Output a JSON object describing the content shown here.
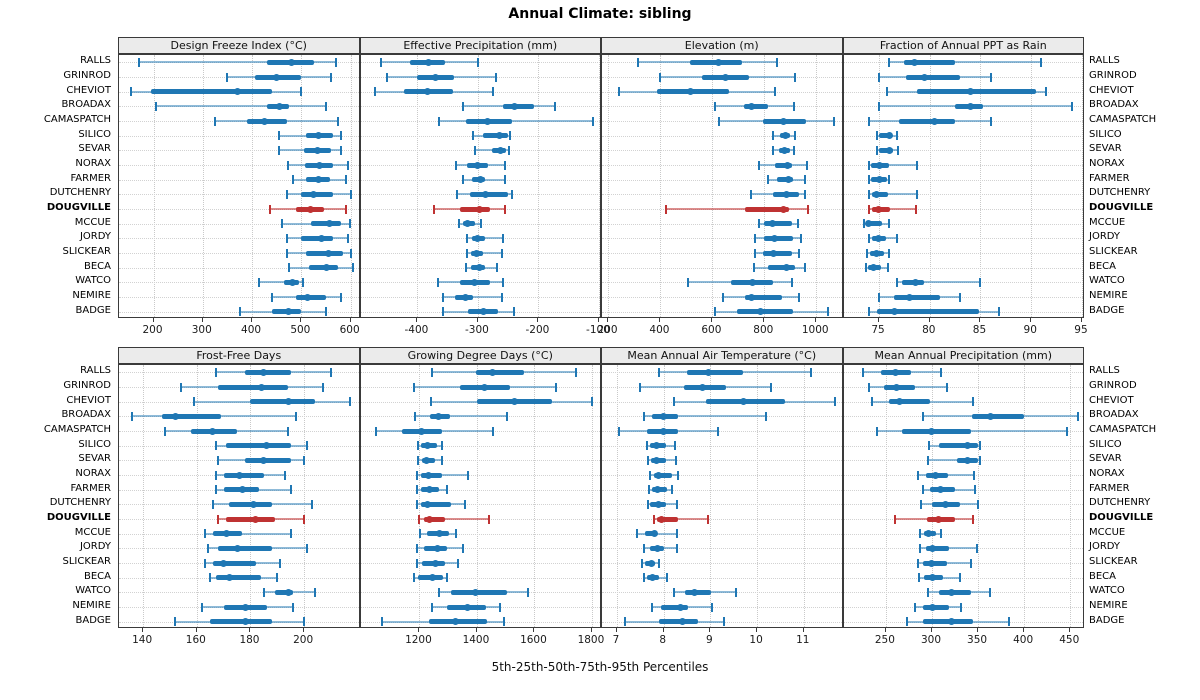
{
  "title": "Annual Climate: sibling",
  "caption": "5th-25th-50th-75th-95th Percentiles",
  "stations": [
    "RALLS",
    "GRINROD",
    "CHEVIOT",
    "BROADAX",
    "CAMASPATCH",
    "SILICO",
    "SEVAR",
    "NORAX",
    "FARMER",
    "DUTCHENRY",
    "DOUGVILLE",
    "MCCUE",
    "JORDY",
    "SLICKEAR",
    "BECA",
    "WATCO",
    "NEMIRE",
    "BADGE"
  ],
  "highlight_station": "DOUGVILLE",
  "colors": {
    "series": "#1f77b4",
    "series_whisker": "rgba(31,119,180,0.5)",
    "highlight": "#bf3232",
    "highlight_whisker": "rgba(191,50,50,0.55)",
    "strip_bg": "#ebebeb",
    "panel_border": "#3a3a3a",
    "grid": "#c9c9c9"
  },
  "chart_data": [
    {
      "type": "percentile-interval",
      "title": "Design Freeze Index (°C)",
      "percentiles": [
        5,
        25,
        50,
        75,
        95
      ],
      "xlim": [
        130,
        620
      ],
      "ticks": [
        200,
        300,
        400,
        500,
        600
      ],
      "series": [
        [
          170,
          430,
          480,
          525,
          570
        ],
        [
          350,
          405,
          450,
          500,
          560
        ],
        [
          155,
          195,
          370,
          440,
          500
        ],
        [
          205,
          430,
          455,
          475,
          550
        ],
        [
          325,
          390,
          425,
          470,
          575
        ],
        [
          455,
          510,
          535,
          565,
          580
        ],
        [
          455,
          505,
          533,
          560,
          580
        ],
        [
          473,
          508,
          537,
          565,
          595
        ],
        [
          483,
          510,
          535,
          558,
          590
        ],
        [
          470,
          500,
          525,
          565,
          600
        ],
        [
          437,
          490,
          518,
          545,
          590
        ],
        [
          460,
          520,
          558,
          580,
          598
        ],
        [
          470,
          500,
          540,
          565,
          595
        ],
        [
          470,
          510,
          555,
          585,
          600
        ],
        [
          475,
          515,
          550,
          575,
          605
        ],
        [
          415,
          465,
          483,
          495,
          503
        ],
        [
          440,
          490,
          512,
          550,
          580
        ],
        [
          375,
          440,
          473,
          500,
          550
        ]
      ]
    },
    {
      "type": "percentile-interval",
      "title": "Effective Precipitation (mm)",
      "percentiles": [
        5,
        25,
        50,
        75,
        95
      ],
      "xlim": [
        -494,
        -95
      ],
      "ticks": [
        -400,
        -300,
        -200,
        -100
      ],
      "series": [
        [
          -460,
          -413,
          -382,
          -355,
          -300
        ],
        [
          -450,
          -400,
          -370,
          -340,
          -270
        ],
        [
          -470,
          -422,
          -383,
          -341,
          -275
        ],
        [
          -325,
          -258,
          -239,
          -207,
          -172
        ],
        [
          -365,
          -320,
          -285,
          -243,
          -110
        ],
        [
          -308,
          -291,
          -264,
          -251,
          -247
        ],
        [
          -305,
          -277,
          -263,
          -253,
          -248
        ],
        [
          -336,
          -318,
          -301,
          -283,
          -256
        ],
        [
          -325,
          -310,
          -295,
          -288,
          -256
        ],
        [
          -335,
          -313,
          -288,
          -250,
          -243
        ],
        [
          -372,
          -330,
          -298,
          -280,
          -256
        ],
        [
          -332,
          -325,
          -317,
          -305,
          -295
        ],
        [
          -318,
          -310,
          -301,
          -289,
          -258
        ],
        [
          -318,
          -312,
          -303,
          -291,
          -260
        ],
        [
          -320,
          -312,
          -297,
          -289,
          -268
        ],
        [
          -366,
          -330,
          -306,
          -280,
          -258
        ],
        [
          -358,
          -338,
          -320,
          -308,
          -260
        ],
        [
          -358,
          -316,
          -290,
          -266,
          -240
        ]
      ]
    },
    {
      "type": "percentile-interval",
      "title": "Elevation (m)",
      "percentiles": [
        5,
        25,
        50,
        75,
        95
      ],
      "xlim": [
        175,
        1105
      ],
      "ticks": [
        200,
        400,
        600,
        800,
        1000
      ],
      "series": [
        [
          315,
          515,
          625,
          715,
          850
        ],
        [
          400,
          560,
          650,
          740,
          920
        ],
        [
          240,
          385,
          515,
          665,
          840
        ],
        [
          610,
          720,
          750,
          815,
          915
        ],
        [
          625,
          795,
          875,
          960,
          1070
        ],
        [
          835,
          860,
          880,
          900,
          920
        ],
        [
          835,
          857,
          878,
          898,
          915
        ],
        [
          780,
          840,
          890,
          905,
          965
        ],
        [
          815,
          850,
          895,
          910,
          955
        ],
        [
          750,
          835,
          885,
          935,
          955
        ],
        [
          420,
          725,
          875,
          895,
          970
        ],
        [
          780,
          800,
          830,
          905,
          930
        ],
        [
          765,
          800,
          840,
          910,
          940
        ],
        [
          765,
          795,
          835,
          905,
          935
        ],
        [
          760,
          815,
          885,
          920,
          955
        ],
        [
          505,
          670,
          755,
          835,
          905
        ],
        [
          640,
          725,
          750,
          870,
          935
        ],
        [
          610,
          695,
          785,
          910,
          1045
        ]
      ]
    },
    {
      "type": "percentile-interval",
      "title": "Fraction of Annual PPT as Rain",
      "percentiles": [
        5,
        25,
        50,
        75,
        95
      ],
      "xlim": [
        71.5,
        95.3
      ],
      "ticks": [
        75,
        80,
        85,
        90,
        95
      ],
      "series": [
        [
          76,
          77.5,
          78.5,
          82.5,
          91
        ],
        [
          75,
          77.7,
          79.5,
          83,
          86
        ],
        [
          75.8,
          78.7,
          84,
          90.5,
          91.5
        ],
        [
          75,
          82.5,
          84,
          85.2,
          94
        ],
        [
          74,
          77,
          80.5,
          82.5,
          86
        ],
        [
          74.8,
          75,
          76,
          76.3,
          76.8
        ],
        [
          74.8,
          75,
          76,
          76.4,
          76.9
        ],
        [
          74,
          74.2,
          75,
          76,
          78.7
        ],
        [
          74,
          74.2,
          75,
          75.8,
          76
        ],
        [
          74,
          74.3,
          74.8,
          75.9,
          78.7
        ],
        [
          74,
          74.3,
          74.9,
          76.1,
          78.6
        ],
        [
          73.5,
          73.7,
          74,
          75.3,
          76
        ],
        [
          74,
          74.3,
          74.9,
          75.7,
          76.8
        ],
        [
          73.8,
          74.1,
          74.8,
          75.5,
          76
        ],
        [
          73.7,
          73.9,
          74.5,
          75.2,
          75.9
        ],
        [
          76.8,
          77.3,
          78.6,
          79.4,
          85
        ],
        [
          75,
          76.5,
          78,
          81,
          83
        ],
        [
          74,
          74.8,
          76.5,
          84.9,
          86.8
        ]
      ]
    },
    {
      "type": "percentile-interval",
      "title": "Frost-Free Days",
      "percentiles": [
        5,
        25,
        50,
        75,
        95
      ],
      "xlim": [
        131,
        221
      ],
      "ticks": [
        140,
        160,
        180,
        200
      ],
      "series": [
        [
          167,
          178,
          185,
          195,
          210
        ],
        [
          154,
          168,
          184,
          194,
          207
        ],
        [
          159,
          180,
          194,
          204,
          217
        ],
        [
          136,
          147,
          152,
          169,
          197
        ],
        [
          148,
          158,
          166,
          175,
          194
        ],
        [
          167,
          171,
          186,
          195,
          201
        ],
        [
          168,
          178,
          185,
          195,
          200
        ],
        [
          167,
          170,
          176,
          185,
          193
        ],
        [
          167,
          170,
          177,
          183,
          195
        ],
        [
          166,
          172,
          181,
          188,
          203
        ],
        [
          168,
          171,
          182,
          189,
          200
        ],
        [
          163,
          166,
          171,
          177,
          195
        ],
        [
          164,
          168,
          175,
          188,
          201
        ],
        [
          163,
          166,
          170,
          182,
          191
        ],
        [
          165,
          167,
          172,
          184,
          190
        ],
        [
          185,
          189,
          194,
          196,
          204
        ],
        [
          162,
          170,
          178,
          186,
          196
        ],
        [
          152,
          165,
          178,
          188,
          200
        ]
      ]
    },
    {
      "type": "percentile-interval",
      "title": "Growing Degree Days (°C)",
      "percentiles": [
        5,
        25,
        50,
        75,
        95
      ],
      "xlim": [
        995,
        1835
      ],
      "ticks": [
        1200,
        1400,
        1600,
        1800
      ],
      "series": [
        [
          1245,
          1395,
          1455,
          1565,
          1745
        ],
        [
          1180,
          1340,
          1425,
          1515,
          1675
        ],
        [
          1240,
          1400,
          1530,
          1660,
          1800
        ],
        [
          1185,
          1235,
          1267,
          1305,
          1505
        ],
        [
          1050,
          1140,
          1207,
          1280,
          1457
        ],
        [
          1195,
          1207,
          1228,
          1260,
          1280
        ],
        [
          1196,
          1210,
          1225,
          1255,
          1278
        ],
        [
          1193,
          1207,
          1232,
          1280,
          1370
        ],
        [
          1193,
          1207,
          1235,
          1267,
          1295
        ],
        [
          1190,
          1205,
          1228,
          1310,
          1360
        ],
        [
          1200,
          1215,
          1235,
          1290,
          1443
        ],
        [
          1203,
          1228,
          1270,
          1302,
          1327
        ],
        [
          1193,
          1215,
          1263,
          1295,
          1350
        ],
        [
          1190,
          1210,
          1256,
          1288,
          1334
        ],
        [
          1182,
          1196,
          1246,
          1281,
          1295
        ],
        [
          1267,
          1310,
          1395,
          1503,
          1577
        ],
        [
          1242,
          1295,
          1366,
          1433,
          1479
        ],
        [
          1070,
          1232,
          1327,
          1436,
          1493
        ]
      ]
    },
    {
      "type": "percentile-interval",
      "title": "Mean Annual Air Temperature (°C)",
      "percentiles": [
        5,
        25,
        50,
        75,
        95
      ],
      "xlim": [
        6.68,
        11.85
      ],
      "ticks": [
        7,
        8,
        9,
        10,
        11
      ],
      "series": [
        [
          7.9,
          8.5,
          8.95,
          9.7,
          11.15
        ],
        [
          7.5,
          8.44,
          8.83,
          9.34,
          10.3
        ],
        [
          8.23,
          8.91,
          9.71,
          10.6,
          11.67
        ],
        [
          7.58,
          7.75,
          8.0,
          8.31,
          10.2
        ],
        [
          7.05,
          7.65,
          8.0,
          8.3,
          9.17
        ],
        [
          7.65,
          7.71,
          7.84,
          8.05,
          8.25
        ],
        [
          7.66,
          7.72,
          7.85,
          8.06,
          8.26
        ],
        [
          7.71,
          7.8,
          7.89,
          8.18,
          8.31
        ],
        [
          7.69,
          7.75,
          7.86,
          8.08,
          8.18
        ],
        [
          7.67,
          7.71,
          7.89,
          8.05,
          8.29
        ],
        [
          7.8,
          7.86,
          7.95,
          8.31,
          8.94
        ],
        [
          7.43,
          7.6,
          7.8,
          7.85,
          8.29
        ],
        [
          7.58,
          7.71,
          7.86,
          8.01,
          8.29
        ],
        [
          7.54,
          7.6,
          7.73,
          7.82,
          7.89
        ],
        [
          7.58,
          7.65,
          7.77,
          7.89,
          8.08
        ],
        [
          8.23,
          8.46,
          8.66,
          9.02,
          9.54
        ],
        [
          7.75,
          7.95,
          8.36,
          8.53,
          9.04
        ],
        [
          7.17,
          7.9,
          8.4,
          8.74,
          9.3
        ]
      ]
    },
    {
      "type": "percentile-interval",
      "title": "Mean Annual Precipitation (mm)",
      "percentiles": [
        5,
        25,
        50,
        75,
        95
      ],
      "xlim": [
        204,
        466
      ],
      "ticks": [
        250,
        300,
        350,
        400,
        450
      ],
      "series": [
        [
          225,
          245,
          260,
          277,
          310
        ],
        [
          232,
          248,
          262,
          282,
          316
        ],
        [
          235,
          253,
          265,
          298,
          345
        ],
        [
          290,
          343,
          364,
          400,
          458
        ],
        [
          240,
          268,
          300,
          342,
          447
        ],
        [
          297,
          308,
          338,
          350,
          352
        ],
        [
          296,
          327,
          339,
          350,
          352
        ],
        [
          285,
          293,
          304,
          317,
          346
        ],
        [
          290,
          298,
          309,
          325,
          347
        ],
        [
          288,
          300,
          315,
          330,
          350
        ],
        [
          260,
          295,
          307,
          325,
          345
        ],
        [
          287,
          291,
          296,
          304,
          310
        ],
        [
          287,
          293,
          301,
          318,
          349
        ],
        [
          285,
          290,
          299,
          316,
          342
        ],
        [
          286,
          291,
          301,
          312,
          330
        ],
        [
          296,
          308,
          321,
          342,
          363
        ],
        [
          282,
          290,
          301,
          318,
          332
        ],
        [
          273,
          290,
          321,
          344,
          384
        ]
      ]
    }
  ]
}
